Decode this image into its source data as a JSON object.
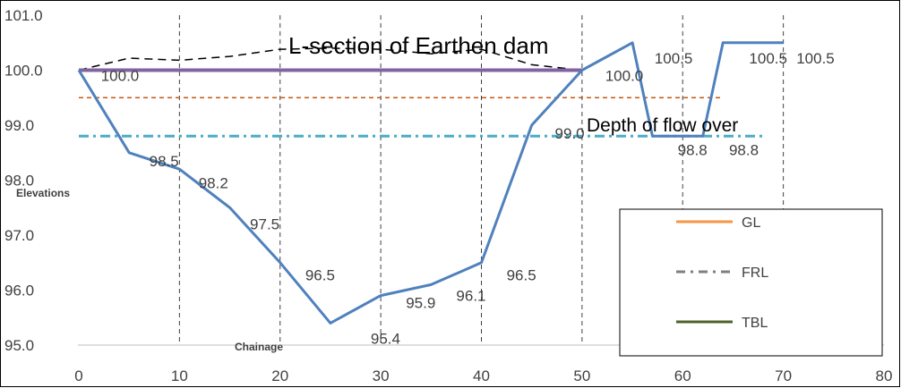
{
  "chart_data": {
    "type": "line",
    "title": "L-section of Earthen dam",
    "xlabel": "Chainage",
    "ylabel": "Elevations",
    "xlim": [
      0,
      80
    ],
    "ylim": [
      95.0,
      101.0
    ],
    "x_ticks": [
      "0",
      "10",
      "20",
      "30",
      "40",
      "50",
      "60",
      "70",
      "80"
    ],
    "y_ticks": [
      "95.0",
      "96.0",
      "97.0",
      "98.0",
      "99.0",
      "100.0",
      "101.0"
    ],
    "grid": "vertical dashed",
    "annotation": "Depth of flow over",
    "colors": {
      "gl": "#4f81bd",
      "frl": "#4bacc6",
      "tbl": "#8064a2",
      "hfl": "#c55a11",
      "top_dashed": "#000000",
      "legend_gl": "#f79646",
      "legend_frl": "#7f7f7f",
      "legend_tbl": "#4f6228"
    },
    "legend": {
      "position": "bottom-right",
      "entries": [
        {
          "name": "GL",
          "color": "#f79646",
          "style": "solid"
        },
        {
          "name": "FRL",
          "color": "#7f7f7f",
          "style": "dashdot"
        },
        {
          "name": "TBL",
          "color": "#4f6228",
          "style": "solid"
        }
      ]
    },
    "series": [
      {
        "id": "ground",
        "style": "solid",
        "color": "#4f81bd",
        "x": [
          0,
          5,
          10,
          15,
          20,
          25,
          30,
          35,
          40,
          45,
          50,
          55,
          57,
          62,
          64,
          70
        ],
        "y": [
          100.0,
          98.5,
          98.2,
          97.5,
          96.5,
          95.4,
          95.9,
          96.1,
          96.5,
          99.0,
          100.0,
          100.5,
          98.8,
          98.8,
          100.5,
          100.5
        ]
      },
      {
        "id": "tbl-line",
        "style": "solid",
        "color": "#8064a2",
        "x": [
          0,
          50
        ],
        "y": [
          100.0,
          100.0
        ]
      },
      {
        "id": "hfl-line",
        "style": "dashed",
        "color": "#c55a11",
        "x": [
          0,
          64
        ],
        "y": [
          99.5,
          99.5
        ]
      },
      {
        "id": "frl-line",
        "style": "dashdot",
        "color": "#4bacc6",
        "x": [
          0,
          68
        ],
        "y": [
          98.8,
          98.8
        ]
      },
      {
        "id": "top-line",
        "style": "dashed",
        "color": "#000000",
        "x": [
          0,
          5,
          10,
          15,
          20,
          25,
          30,
          35,
          40,
          45,
          50
        ],
        "y": [
          100.0,
          100.22,
          100.18,
          100.25,
          100.38,
          100.4,
          100.38,
          100.3,
          100.38,
          100.1,
          100.0
        ]
      }
    ],
    "data_labels": [
      {
        "text": "100.0",
        "x": 2.2,
        "y": 99.9
      },
      {
        "text": "98.5",
        "x": 7.0,
        "y": 98.35
      },
      {
        "text": "98.2",
        "x": 11.9,
        "y": 97.95
      },
      {
        "text": "97.5",
        "x": 17.0,
        "y": 97.2
      },
      {
        "text": "96.5",
        "x": 22.5,
        "y": 96.28
      },
      {
        "text": "95.4",
        "x": 29.0,
        "y": 95.12
      },
      {
        "text": "95.9",
        "x": 32.5,
        "y": 95.77
      },
      {
        "text": "96.1",
        "x": 37.5,
        "y": 95.9
      },
      {
        "text": "96.5",
        "x": 42.5,
        "y": 96.28
      },
      {
        "text": "99.0",
        "x": 47.3,
        "y": 98.85
      },
      {
        "text": "100.0",
        "x": 52.3,
        "y": 99.9
      },
      {
        "text": "100.5",
        "x": 57.2,
        "y": 100.22
      },
      {
        "text": "98.8",
        "x": 59.5,
        "y": 98.55
      },
      {
        "text": "98.8",
        "x": 64.6,
        "y": 98.55
      },
      {
        "text": "100.5",
        "x": 66.6,
        "y": 100.22
      },
      {
        "text": "100.5",
        "x": 71.3,
        "y": 100.22
      }
    ]
  }
}
